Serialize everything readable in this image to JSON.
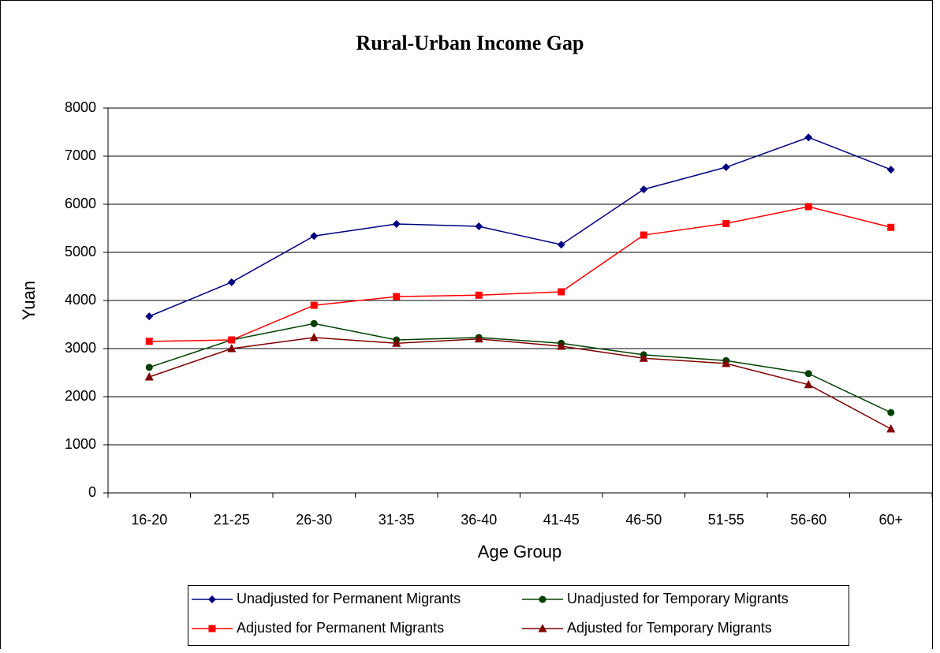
{
  "chart_data": {
    "type": "line",
    "title": "Rural-Urban Income Gap",
    "x_label": "Age Group",
    "y_label": "Yuan",
    "categories": [
      "16-20",
      "21-25",
      "26-30",
      "31-35",
      "36-40",
      "41-45",
      "46-50",
      "51-55",
      "56-60",
      "60+"
    ],
    "series": [
      {
        "name": "Unadjusted for Permanent Migrants",
        "color": "#000080",
        "marker": "diamond",
        "values": [
          3670,
          4380,
          5340,
          5590,
          5540,
          5160,
          6310,
          6770,
          7390,
          6720
        ]
      },
      {
        "name": "Unadjusted for Temporary Migrants",
        "color": "#004000",
        "marker": "circle",
        "values": [
          2610,
          3180,
          3520,
          3180,
          3230,
          3110,
          2870,
          2750,
          2480,
          1670
        ]
      },
      {
        "name": "Adjusted for Permanent Migrants",
        "color": "#ff0000",
        "marker": "square",
        "values": [
          3150,
          3180,
          3900,
          4080,
          4110,
          4180,
          5360,
          5600,
          5950,
          5520
        ]
      },
      {
        "name": "Adjusted for Temporary Migrants",
        "color": "#800000",
        "marker": "triangle",
        "values": [
          2410,
          3000,
          3230,
          3110,
          3200,
          3050,
          2800,
          2690,
          2250,
          1330
        ]
      }
    ],
    "ylim": [
      0,
      8000
    ],
    "yticks": [
      0,
      1000,
      2000,
      3000,
      4000,
      5000,
      6000,
      7000,
      8000
    ],
    "grid": true
  }
}
